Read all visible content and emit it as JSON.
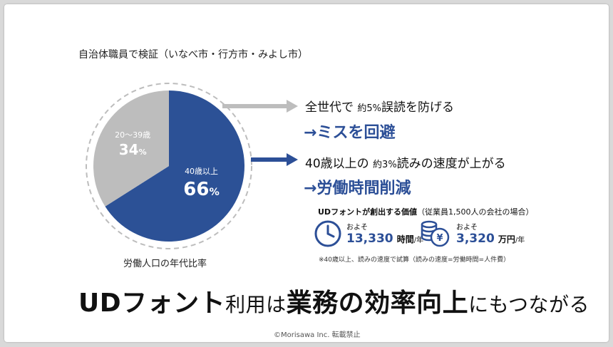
{
  "title": "自治体職員で検証（いなべ市・行方市・みよし市）",
  "chart_data": {
    "type": "pie",
    "slices": [
      {
        "label": "40歳以上",
        "value": 66,
        "value_text": "66",
        "unit": "%",
        "color": "#2c5196"
      },
      {
        "label": "20〜39歳",
        "value": 34,
        "value_text": "34",
        "unit": "%",
        "color": "#bdbdbd"
      }
    ],
    "caption": "労働人口の年代比率"
  },
  "effects": [
    {
      "prefix": "全世代で",
      "small": "約5%",
      "suffix": "誤読を防げる",
      "result": "ミスを回避",
      "arrow_color": "#bdbdbd"
    },
    {
      "prefix": "40歳以上の",
      "small": "約3%",
      "suffix": "読みの速度が上がる",
      "result": "労働時間削減",
      "arrow_color": "#2c4f97"
    }
  ],
  "result_prefix": "→",
  "ud_value": {
    "bold": "UDフォントが創出する価値",
    "note": "（従業員1,500人の会社の場合）",
    "items": [
      {
        "icon": "clock-icon",
        "approx": "およそ",
        "number": "13,330",
        "unit": "時間",
        "per": "/年"
      },
      {
        "icon": "yen-coins-icon",
        "approx": "およそ",
        "number": "3,320",
        "unit": "万円",
        "per": "/年"
      }
    ],
    "footnote": "※40歳以上、読みの速度で試算（読みの速度=労働時間=人件費）"
  },
  "headline": {
    "part1": "UDフォント",
    "part2": "利用は",
    "part3": "業務の効率向上",
    "part4": "にもつながる"
  },
  "copyright": "©Morisawa Inc.  転載禁止"
}
